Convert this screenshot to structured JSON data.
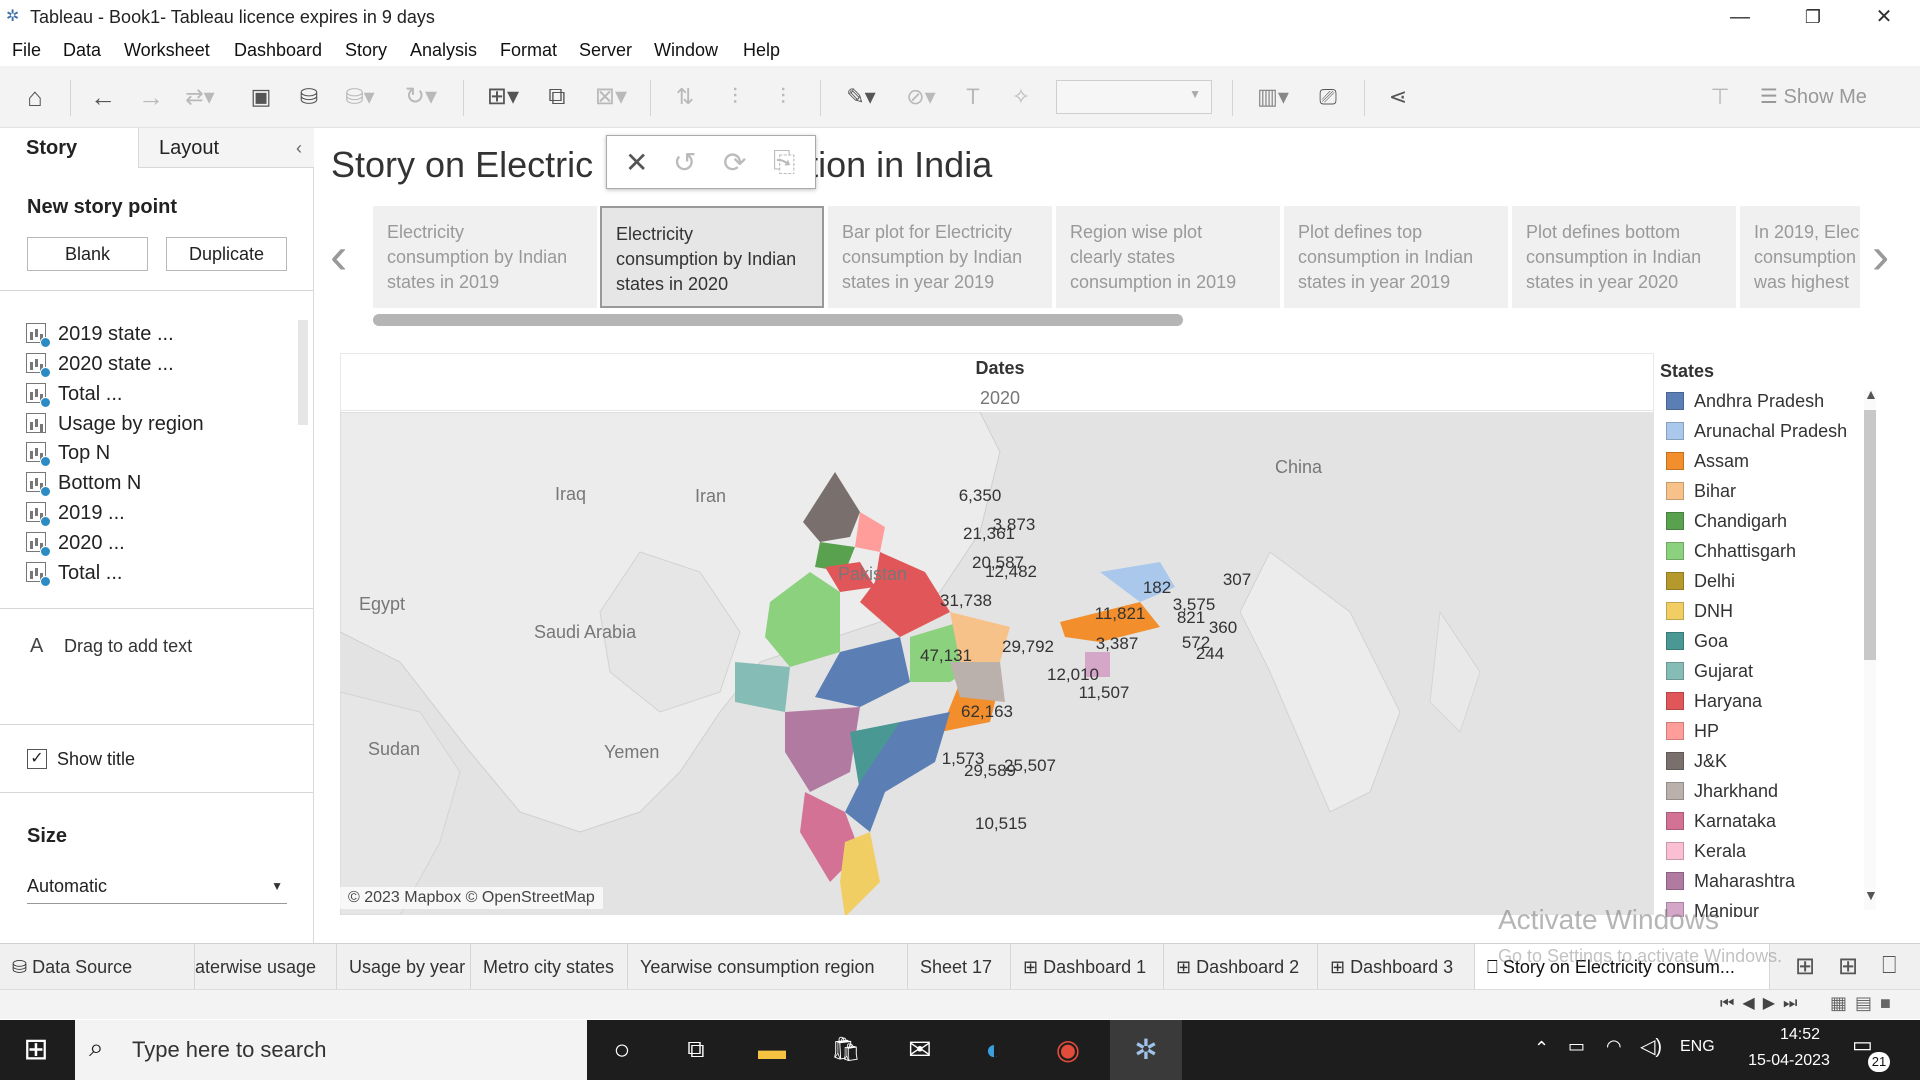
{
  "window": {
    "title": "Tableau - Book1- Tableau licence expires in 9 days"
  },
  "menu": [
    "File",
    "Data",
    "Worksheet",
    "Dashboard",
    "Story",
    "Analysis",
    "Format",
    "Server",
    "Window",
    "Help"
  ],
  "toolbar": {
    "show_me": "Show Me"
  },
  "left": {
    "tabs": [
      "Story",
      "Layout"
    ],
    "new_story_point": "New story point",
    "blank": "Blank",
    "duplicate": "Duplicate",
    "sheets": [
      "2019 state ...",
      "2020 state ...",
      "Total ...",
      "Usage by region",
      "Top N",
      "Bottom N",
      "2019 ...",
      "2020 ...",
      "Total ..."
    ],
    "drag_text": "Drag to add text",
    "show_title": "Show title",
    "size_label": "Size",
    "size_value": "Automatic"
  },
  "story": {
    "title_left": "Story on Electric",
    "title_right": "tion in India",
    "points": [
      "Electricity\nconsumption by Indian\nstates in 2019",
      "Electricity\nconsumption by Indian\nstates in 2020",
      "Bar plot for Electricity\nconsumption by Indian\nstates in year 2019",
      "Region wise plot\nclearly states\nconsumption in 2019",
      "Plot defines top\nconsumption in Indian\nstates in year 2019",
      "Plot defines bottom\nconsumption in Indian\nstates in year 2020",
      "In 2019, Elec\nconsumption\nwas highest"
    ]
  },
  "viz": {
    "header": "Dates",
    "year": "2020",
    "countries": [
      "China",
      "Iraq",
      "Iran",
      "Pakistan",
      "Egypt",
      "Saudi Arabia",
      "Sudan",
      "Yemen"
    ],
    "attribution": "© 2023 Mapbox © OpenStreetMap",
    "state_labels": [
      "6,350",
      "3,873",
      "21,361",
      "20,587",
      "12,482",
      "31,738",
      "47,131",
      "29,792",
      "12,010",
      "11,507",
      "62,163",
      "1,573",
      "29,589",
      "25,507",
      "10,515",
      "11,821",
      "3,387",
      "182",
      "3,575",
      "821",
      "360",
      "572",
      "244",
      "307"
    ]
  },
  "legend": {
    "title": "States",
    "items": [
      {
        "name": "Andhra Pradesh",
        "color": "#5b7fb5"
      },
      {
        "name": "Arunachal Pradesh",
        "color": "#a9c8ec"
      },
      {
        "name": "Assam",
        "color": "#f28e2b"
      },
      {
        "name": "Bihar",
        "color": "#f7c28a"
      },
      {
        "name": "Chandigarh",
        "color": "#59a14f"
      },
      {
        "name": "Chhattisgarh",
        "color": "#8cd17d"
      },
      {
        "name": "Delhi",
        "color": "#b6992d"
      },
      {
        "name": "DNH",
        "color": "#f1ce63"
      },
      {
        "name": "Goa",
        "color": "#499894"
      },
      {
        "name": "Gujarat",
        "color": "#86bcb6"
      },
      {
        "name": "Haryana",
        "color": "#e15759"
      },
      {
        "name": "HP",
        "color": "#ff9d9a"
      },
      {
        "name": "J&K",
        "color": "#79706e"
      },
      {
        "name": "Jharkhand",
        "color": "#bab0ac"
      },
      {
        "name": "Karnataka",
        "color": "#d37295"
      },
      {
        "name": "Kerala",
        "color": "#fabfd2"
      },
      {
        "name": "Maharashtra",
        "color": "#b07aa1"
      },
      {
        "name": "Manipur",
        "color": "#d4a6c8"
      }
    ]
  },
  "watermark": {
    "line1": "Activate Windows",
    "line2": "Go to Settings to activate Windows."
  },
  "sheet_tabs": [
    "Data Source",
    "aterwise usage",
    "Usage by year",
    "Metro city states",
    "Yearwise consumption region",
    "Sheet 17",
    "Dashboard 1",
    "Dashboard 2",
    "Dashboard 3",
    "Story on Electricity consum..."
  ],
  "taskbar": {
    "search": "Type here to search",
    "lang": "ENG",
    "time": "14:52",
    "date": "15-04-2023",
    "notif": "21"
  }
}
